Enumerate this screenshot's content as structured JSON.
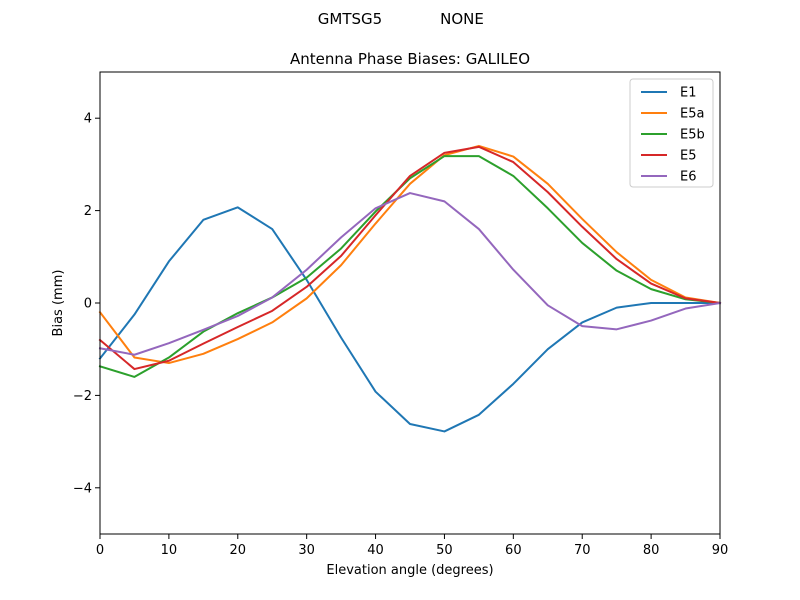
{
  "suptitle": {
    "left": "GMTSG5",
    "right": "NONE"
  },
  "chart_data": {
    "type": "line",
    "title": "Antenna Phase Biases: GALILEO",
    "xlabel": "Elevation angle (degrees)",
    "ylabel": "Bias (mm)",
    "xlim": [
      0,
      90
    ],
    "ylim": [
      -5,
      5
    ],
    "xticks": [
      0,
      10,
      20,
      30,
      40,
      50,
      60,
      70,
      80,
      90
    ],
    "xtick_labels": [
      "0",
      "10",
      "20",
      "30",
      "40",
      "50",
      "60",
      "70",
      "80",
      "90"
    ],
    "yticks": [
      -4,
      -2,
      0,
      2,
      4
    ],
    "ytick_labels": [
      "−4",
      "−2",
      "0",
      "2",
      "4"
    ],
    "grid": false,
    "legend_position": "top-right",
    "x": [
      0,
      5,
      10,
      15,
      20,
      25,
      30,
      35,
      40,
      45,
      50,
      55,
      60,
      65,
      70,
      75,
      80,
      85,
      90
    ],
    "series": [
      {
        "name": "E1",
        "color": "#1f77b4",
        "values": [
          -1.2,
          -0.25,
          0.9,
          1.8,
          2.07,
          1.6,
          0.5,
          -0.75,
          -1.92,
          -2.62,
          -2.78,
          -2.42,
          -1.75,
          -1.0,
          -0.42,
          -0.1,
          0.0,
          0.0,
          0.0
        ]
      },
      {
        "name": "E5a",
        "color": "#ff7f0e",
        "values": [
          -0.2,
          -1.18,
          -1.3,
          -1.1,
          -0.78,
          -0.42,
          0.1,
          0.82,
          1.72,
          2.58,
          3.2,
          3.4,
          3.17,
          2.58,
          1.82,
          1.1,
          0.5,
          0.12,
          0.0
        ]
      },
      {
        "name": "E5b",
        "color": "#2ca02c",
        "values": [
          -1.37,
          -1.6,
          -1.18,
          -0.62,
          -0.22,
          0.12,
          0.55,
          1.18,
          1.98,
          2.7,
          3.18,
          3.18,
          2.75,
          2.05,
          1.3,
          0.7,
          0.3,
          0.08,
          0.0
        ]
      },
      {
        "name": "E5",
        "color": "#d62728",
        "values": [
          -0.8,
          -1.43,
          -1.25,
          -0.88,
          -0.52,
          -0.17,
          0.35,
          1.02,
          1.9,
          2.75,
          3.25,
          3.38,
          3.05,
          2.4,
          1.65,
          0.95,
          0.42,
          0.1,
          0.0
        ]
      },
      {
        "name": "E6",
        "color": "#9467bd",
        "values": [
          -0.98,
          -1.12,
          -0.87,
          -0.58,
          -0.28,
          0.12,
          0.72,
          1.42,
          2.05,
          2.38,
          2.2,
          1.6,
          0.72,
          -0.05,
          -0.5,
          -0.57,
          -0.38,
          -0.12,
          0.0
        ]
      }
    ]
  }
}
